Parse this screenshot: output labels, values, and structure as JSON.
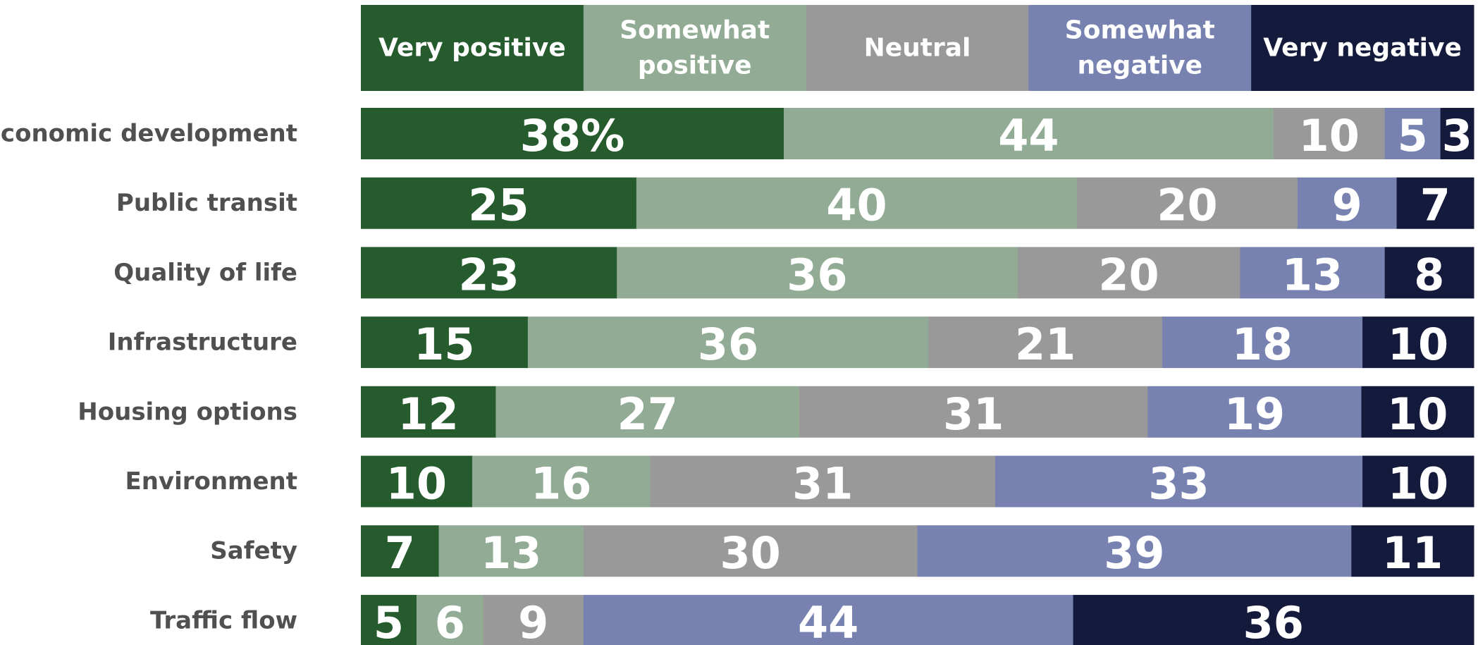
{
  "chart_data": {
    "type": "bar",
    "orientation": "horizontal",
    "stacked": true,
    "percent_stacked": true,
    "legend_placement": "top",
    "grid": false,
    "categories": [
      "Economic development",
      "Public transit",
      "Quality of life",
      "Infrastructure",
      "Housing options",
      "Environment",
      "Safety",
      "Traffic flow"
    ],
    "series": [
      {
        "name": "Very positive",
        "color": "#265b2e",
        "values": [
          38,
          25,
          23,
          15,
          12,
          10,
          7,
          5
        ],
        "labels": [
          "38%",
          "25",
          "23",
          "15",
          "12",
          "10",
          "7",
          "5"
        ]
      },
      {
        "name": "Somewhat positive",
        "color": "#91ab94",
        "values": [
          44,
          40,
          36,
          36,
          27,
          16,
          13,
          6
        ],
        "labels": [
          "44",
          "40",
          "36",
          "36",
          "27",
          "16",
          "13",
          "6"
        ]
      },
      {
        "name": "Neutral",
        "color": "#999999",
        "values": [
          10,
          20,
          20,
          21,
          31,
          31,
          30,
          9
        ],
        "labels": [
          "10",
          "20",
          "20",
          "21",
          "31",
          "31",
          "30",
          "9"
        ]
      },
      {
        "name": "Somewhat negative",
        "color": "#7882b0",
        "values": [
          5,
          9,
          13,
          18,
          19,
          33,
          39,
          44
        ],
        "labels": [
          "5",
          "9",
          "13",
          "18",
          "19",
          "33",
          "39",
          "44"
        ]
      },
      {
        "name": "Very negative",
        "color": "#131a3b",
        "values": [
          3,
          7,
          8,
          10,
          10,
          10,
          11,
          36
        ],
        "labels": [
          "3",
          "7",
          "8",
          "10",
          "10",
          "10",
          "11",
          "36"
        ]
      }
    ],
    "legend_lines": [
      [
        "Very positive"
      ],
      [
        "Somewhat",
        "positive"
      ],
      [
        "Neutral"
      ],
      [
        "Somewhat",
        "negative"
      ],
      [
        "Very negative"
      ]
    ]
  }
}
